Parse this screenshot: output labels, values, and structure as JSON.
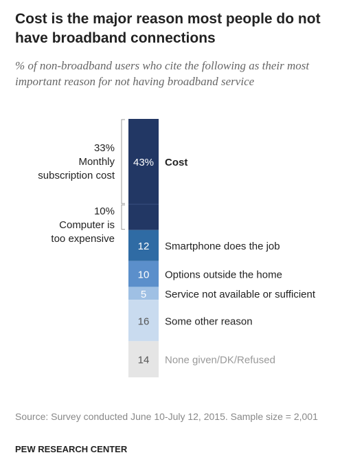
{
  "title": "Cost is the major reason most people do not have broadband connections",
  "subtitle": "% of non-broadband users who cite the following as their most important reason for not having broadband service",
  "source": "Source: Survey conducted June 10-July 12, 2015. Sample size = 2,001",
  "org": "PEW RESEARCH CENTER",
  "chart_data": {
    "type": "bar",
    "stacked": true,
    "orientation": "vertical",
    "categories": [
      "Cost",
      "Smartphone does the job",
      "Options outside the home",
      "Service not available or sufficient",
      "Some other reason",
      "None given/DK/Refused"
    ],
    "values": [
      43,
      12,
      10,
      5,
      16,
      14
    ],
    "value_labels": [
      "43%",
      "12",
      "10",
      "5",
      "16",
      "14"
    ],
    "colors": [
      "#223764",
      "#2f6ba4",
      "#5b8fcb",
      "#9fc0e4",
      "#c9dbef",
      "#e5e5e5"
    ],
    "label_colors": [
      "#222222",
      "#222222",
      "#222222",
      "#222222",
      "#222222",
      "#999999"
    ],
    "value_text_colors": [
      "#ffffff",
      "#ffffff",
      "#ffffff",
      "#ffffff",
      "#555555",
      "#555555"
    ],
    "emphasized": [
      "Cost"
    ],
    "cost_breakdown": [
      {
        "label_lines": [
          "33%",
          "Monthly",
          "subscription cost"
        ],
        "value": 33
      },
      {
        "label_lines": [
          "10%",
          "Computer is",
          "too expensive"
        ],
        "value": 10
      }
    ]
  }
}
